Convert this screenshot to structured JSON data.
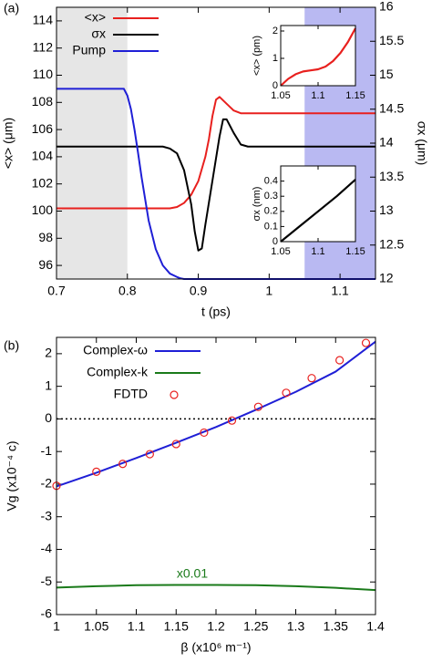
{
  "chart_data": [
    {
      "panel_label": "(a)",
      "type": "line",
      "xlabel": "t  (ps)",
      "ylabel_left": "<x>  (μm)",
      "ylabel_right": "σx  (μm)",
      "xlim": [
        0.7,
        1.15
      ],
      "ylim_left": [
        95,
        115
      ],
      "ylim_right": [
        12,
        16
      ],
      "xticks": [
        0.7,
        0.8,
        0.9,
        1,
        1.1
      ],
      "xtick_labels": [
        "0.7",
        "0.8",
        "0.9",
        "1",
        "1.1"
      ],
      "yticks_left": [
        96,
        98,
        100,
        102,
        104,
        106,
        108,
        110,
        112,
        114
      ],
      "ytick_labels_left": [
        "96",
        "98",
        "100",
        "102",
        "104",
        "106",
        "108",
        "110",
        "112",
        "114"
      ],
      "yticks_right": [
        12,
        12.5,
        13,
        13.5,
        14,
        14.5,
        15,
        15.5,
        16
      ],
      "ytick_labels_right": [
        "12",
        "12.5",
        "13",
        "13.5",
        "14",
        "14.5",
        "15",
        "15.5",
        "16"
      ],
      "shaded_regions": [
        {
          "x": [
            0.7,
            0.8
          ],
          "color": "#e6e6e6"
        },
        {
          "x": [
            1.05,
            1.15
          ],
          "color": "#b9b9f2"
        }
      ],
      "legend": [
        {
          "label": "<x>",
          "color": "#e8201e"
        },
        {
          "label": "σx",
          "color": "#000000"
        },
        {
          "label": "Pump",
          "color": "#1f1fd6"
        }
      ],
      "series": [
        {
          "name": "<x>",
          "axis": "left",
          "color": "#e8201e",
          "x": [
            0.7,
            0.86,
            0.87,
            0.88,
            0.89,
            0.9,
            0.91,
            0.915,
            0.92,
            0.925,
            0.93,
            0.94,
            0.95,
            0.96,
            0.98,
            1.0,
            1.15
          ],
          "y": [
            100.2,
            100.2,
            100.3,
            100.6,
            101.2,
            102.2,
            104.0,
            105.3,
            107.0,
            108.2,
            108.4,
            107.9,
            107.4,
            107.2,
            107.2,
            107.2,
            107.2
          ]
        },
        {
          "name": "σx",
          "axis": "right",
          "color": "#000000",
          "x": [
            0.7,
            0.85,
            0.86,
            0.87,
            0.88,
            0.89,
            0.895,
            0.9,
            0.905,
            0.91,
            0.92,
            0.93,
            0.935,
            0.94,
            0.95,
            0.96,
            0.97,
            1.0,
            1.15
          ],
          "y": [
            13.95,
            13.95,
            13.92,
            13.85,
            13.6,
            13.1,
            12.7,
            12.42,
            12.45,
            12.8,
            13.45,
            14.1,
            14.35,
            14.35,
            14.15,
            13.98,
            13.95,
            13.95,
            13.95
          ]
        },
        {
          "name": "Pump",
          "axis": "left",
          "color": "#1f1fd6",
          "x": [
            0.7,
            0.795,
            0.8,
            0.805,
            0.81,
            0.815,
            0.82,
            0.83,
            0.84,
            0.85,
            0.86,
            0.87,
            0.875,
            0.88,
            1.15
          ],
          "y": [
            109,
            109,
            108.5,
            107.5,
            106,
            104.3,
            102.5,
            99.3,
            97.2,
            96,
            95.4,
            95.15,
            95.05,
            95,
            95
          ]
        }
      ],
      "insets": [
        {
          "ylabel": "<x>  (pm)",
          "xlim": [
            1.05,
            1.15
          ],
          "ylim": [
            0,
            2.2
          ],
          "xticks": [
            1.05,
            1.1,
            1.15
          ],
          "xtick_labels": [
            "1.05",
            "1.1",
            "1.15"
          ],
          "yticks": [
            0,
            1,
            2
          ],
          "ytick_labels": [
            "0",
            "1",
            "2"
          ],
          "series": [
            {
              "color": "#e8201e",
              "x": [
                1.05,
                1.06,
                1.07,
                1.08,
                1.09,
                1.1,
                1.11,
                1.12,
                1.13,
                1.14,
                1.15
              ],
              "y": [
                0.0,
                0.25,
                0.42,
                0.52,
                0.56,
                0.6,
                0.7,
                0.9,
                1.2,
                1.6,
                2.1
              ]
            }
          ]
        },
        {
          "ylabel": "σx  (nm)",
          "xlim": [
            1.05,
            1.15
          ],
          "ylim": [
            0,
            0.5
          ],
          "xticks": [
            1.05,
            1.1,
            1.15
          ],
          "xtick_labels": [
            "1.05",
            "1.1",
            "1.15"
          ],
          "yticks": [
            0,
            0.1,
            0.2,
            0.3,
            0.4
          ],
          "ytick_labels": [
            "0",
            "0.1",
            "0.2",
            "0.3",
            "0.4"
          ],
          "series": [
            {
              "color": "#000000",
              "x": [
                1.05,
                1.075,
                1.1,
                1.125,
                1.15
              ],
              "y": [
                0.0,
                0.1,
                0.2,
                0.3,
                0.41
              ]
            }
          ]
        }
      ]
    },
    {
      "panel_label": "(b)",
      "type": "line",
      "xlabel": "β  (x10⁶ m⁻¹)",
      "ylabel": "Vg  (x10⁻⁴ c)",
      "xlim": [
        1,
        1.4
      ],
      "ylim": [
        -6,
        2.5
      ],
      "xticks": [
        1,
        1.05,
        1.1,
        1.15,
        1.2,
        1.25,
        1.3,
        1.35,
        1.4
      ],
      "xtick_labels": [
        "1",
        "1.05",
        "1.1",
        "1.15",
        "1.2",
        "1.25",
        "1.3",
        "1.35",
        "1.4"
      ],
      "yticks": [
        -6,
        -5,
        -4,
        -3,
        -2,
        -1,
        0,
        1,
        2
      ],
      "ytick_labels": [
        "-6",
        "-5",
        "-4",
        "-3",
        "-2",
        "-1",
        "0",
        "1",
        "2"
      ],
      "zero_line": true,
      "annotation": "x0.01",
      "legend": [
        {
          "label": "Complex-ω",
          "color": "#1f1fd6",
          "style": "line"
        },
        {
          "label": "Complex-k",
          "color": "#1a7a1a",
          "style": "line"
        },
        {
          "label": "FDTD",
          "color": "#e8201e",
          "style": "marker"
        }
      ],
      "series": [
        {
          "name": "Complex-ω",
          "color": "#1f1fd6",
          "x": [
            1.0,
            1.05,
            1.1,
            1.15,
            1.2,
            1.25,
            1.3,
            1.35,
            1.4
          ],
          "y": [
            -2.07,
            -1.65,
            -1.2,
            -0.73,
            -0.25,
            0.28,
            0.83,
            1.45,
            2.37
          ]
        },
        {
          "name": "Complex-k",
          "color": "#1a7a1a",
          "x": [
            1.0,
            1.05,
            1.1,
            1.15,
            1.2,
            1.25,
            1.3,
            1.35,
            1.4
          ],
          "y": [
            -5.17,
            -5.13,
            -5.1,
            -5.09,
            -5.09,
            -5.1,
            -5.13,
            -5.18,
            -5.25
          ]
        },
        {
          "name": "FDTD",
          "color": "#e8201e",
          "marker": "circle",
          "x": [
            1.0,
            1.05,
            1.083,
            1.117,
            1.15,
            1.185,
            1.22,
            1.253,
            1.288,
            1.32,
            1.355,
            1.388
          ],
          "y": [
            -2.05,
            -1.62,
            -1.38,
            -1.08,
            -0.77,
            -0.42,
            -0.05,
            0.37,
            0.8,
            1.25,
            1.8,
            2.33
          ]
        }
      ]
    }
  ]
}
